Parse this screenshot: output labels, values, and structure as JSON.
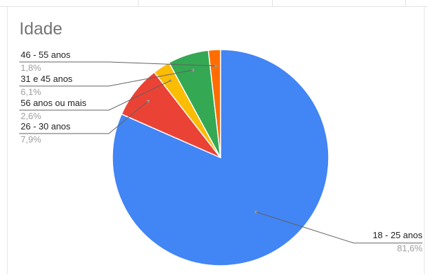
{
  "chart_data": {
    "type": "pie",
    "title": "Idade",
    "slices": [
      {
        "label": "18 - 25 anos",
        "value": 81.6,
        "pct_text": "81,6%",
        "color": "#4285f4"
      },
      {
        "label": "26 - 30 anos",
        "value": 7.9,
        "pct_text": "7,9%",
        "color": "#ea4335"
      },
      {
        "label": "56 anos ou mais",
        "value": 2.6,
        "pct_text": "2,6%",
        "color": "#fbbc04"
      },
      {
        "label": "31 e 45 anos",
        "value": 6.1,
        "pct_text": "6,1%",
        "color": "#34a853"
      },
      {
        "label": "46 - 55 anos",
        "value": 1.8,
        "pct_text": "1,8%",
        "color": "#ff6d01"
      }
    ],
    "legend": "leader-line labels",
    "start": "top, clockwise"
  }
}
